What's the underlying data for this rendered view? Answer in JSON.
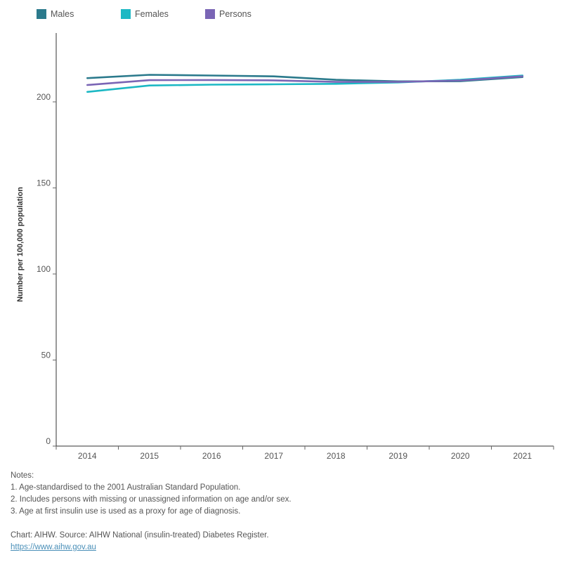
{
  "chart_data": {
    "type": "line",
    "title": "",
    "xlabel": "",
    "ylabel": "Number per 100,000 population",
    "categories": [
      "2014",
      "2015",
      "2016",
      "2017",
      "2018",
      "2019",
      "2020",
      "2021"
    ],
    "ylim": [
      0,
      240
    ],
    "yticks": [
      0,
      50,
      100,
      150,
      200
    ],
    "series": [
      {
        "name": "Males",
        "color": "#2b7a8c",
        "values": [
          213.8,
          215.7,
          215.3,
          214.8,
          212.8,
          211.9,
          212.0,
          214.4
        ]
      },
      {
        "name": "Females",
        "color": "#1cb8c4",
        "values": [
          205.8,
          209.5,
          210.0,
          210.2,
          210.5,
          211.3,
          212.8,
          215.3
        ]
      },
      {
        "name": "Persons",
        "color": "#7a65b5",
        "values": [
          209.8,
          212.6,
          212.7,
          212.5,
          211.6,
          211.6,
          212.4,
          214.8
        ]
      }
    ],
    "legend_position": "top-left",
    "grid": false
  },
  "notes": {
    "heading": "Notes:",
    "items": [
      "1. Age-standardised to the 2001 Australian Standard Population.",
      "2. Includes persons with missing or unassigned information on age and/or sex.",
      "3. Age at first insulin use is used as a proxy for age of diagnosis."
    ],
    "source": "Chart: AIHW. Source: AIHW National (insulin-treated) Diabetes Register.",
    "link": "https://www.aihw.gov.au"
  }
}
